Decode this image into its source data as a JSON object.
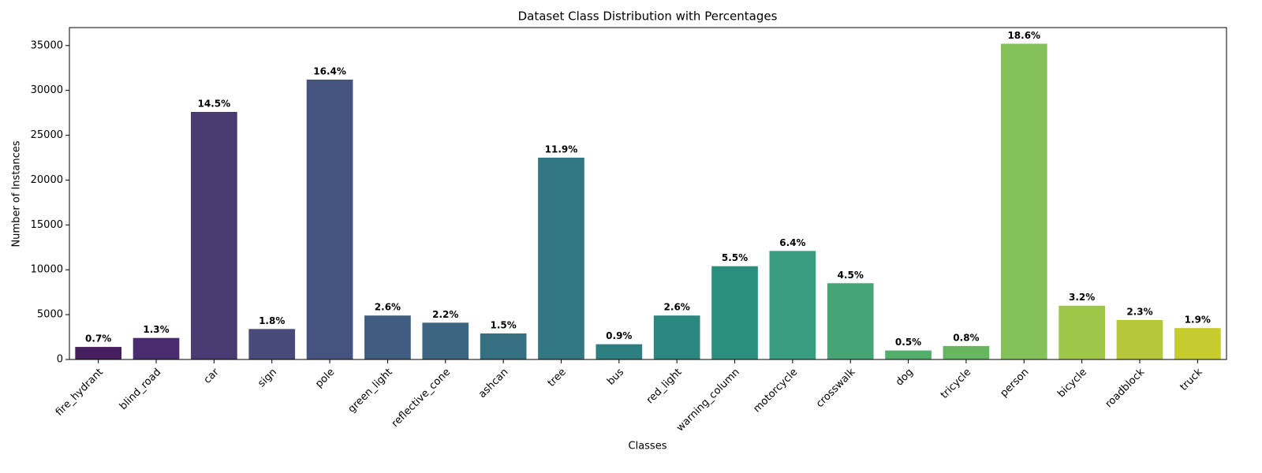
{
  "chart_data": {
    "type": "bar",
    "title": "Dataset Class Distribution with Percentages",
    "xlabel": "Classes",
    "ylabel": "Number of Instances",
    "categories": [
      "fire_hydrant",
      "blind_road",
      "car",
      "sign",
      "pole",
      "green_light",
      "reflective_cone",
      "ashcan",
      "tree",
      "bus",
      "red_light",
      "warning_column",
      "motorcycle",
      "crosswalk",
      "dog",
      "tricycle",
      "person",
      "bicycle",
      "roadblock",
      "truck"
    ],
    "values": [
      1400,
      2400,
      27600,
      3400,
      31200,
      4900,
      4100,
      2900,
      22500,
      1700,
      4900,
      10400,
      12100,
      8500,
      1000,
      1500,
      35200,
      6000,
      4400,
      3500
    ],
    "percent_labels": [
      "0.7%",
      "1.3%",
      "14.5%",
      "1.8%",
      "16.4%",
      "2.6%",
      "2.2%",
      "1.5%",
      "11.9%",
      "0.9%",
      "2.6%",
      "5.5%",
      "6.4%",
      "4.5%",
      "0.5%",
      "0.8%",
      "18.6%",
      "3.2%",
      "2.3%",
      "1.9%"
    ],
    "colors": [
      "#461f5f",
      "#482c6e",
      "#4a3a72",
      "#484a7a",
      "#45547e",
      "#3e5d80",
      "#3b6581",
      "#366e82",
      "#327682",
      "#2e7f82",
      "#2c8780",
      "#2b8f7d",
      "#389c7e",
      "#45a574",
      "#53ad6b",
      "#66b561",
      "#84c15b",
      "#9ec74a",
      "#b4c83a",
      "#c6cb2e"
    ],
    "ylim": [
      0,
      37000
    ],
    "yticks": [
      0,
      5000,
      10000,
      15000,
      20000,
      25000,
      30000,
      35000
    ],
    "grid": false
  }
}
